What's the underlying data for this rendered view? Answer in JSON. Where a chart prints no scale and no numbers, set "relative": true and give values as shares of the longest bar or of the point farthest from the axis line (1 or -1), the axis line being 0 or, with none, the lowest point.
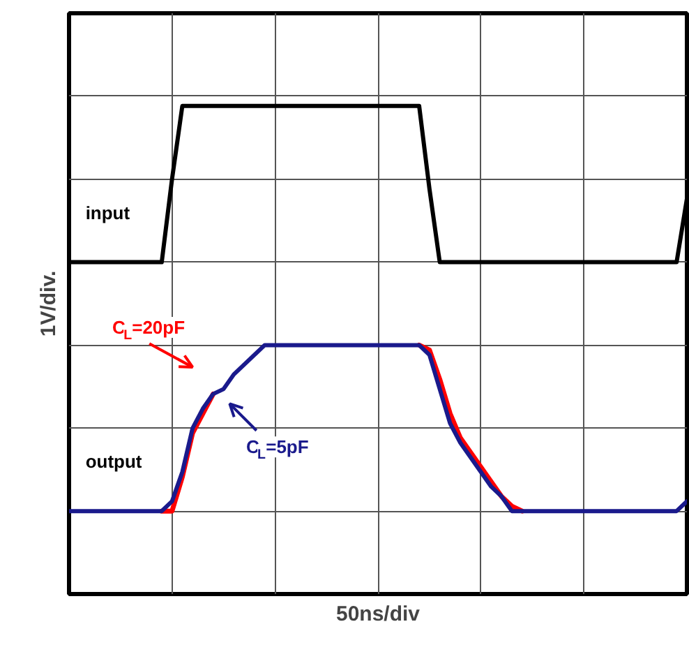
{
  "chart_data": {
    "type": "line",
    "relative": true,
    "xlabel": "50ns/div",
    "ylabel": "1V/div.",
    "grid": true,
    "categories": [
      null,
      null,
      null,
      null,
      null,
      null,
      null,
      null,
      null,
      null,
      null,
      null,
      null,
      null,
      null,
      null,
      null,
      null,
      null,
      null,
      null,
      null,
      null,
      null,
      null,
      null,
      null,
      null,
      null,
      null,
      null,
      null,
      null,
      null,
      null,
      null,
      null,
      null,
      null,
      null,
      null,
      null,
      null,
      null,
      null,
      null,
      null,
      null,
      null,
      null,
      null,
      null,
      null,
      null,
      null,
      null,
      null,
      null,
      null,
      null,
      null
    ],
    "series": [
      {
        "name": "input",
        "color": "#000000",
        "values": [
          0.68,
          0.68,
          0.68,
          0.68,
          0.68,
          0.68,
          0.68,
          0.68,
          0.68,
          0.68,
          0.85,
          1,
          1,
          1,
          1,
          1,
          1,
          1,
          1,
          1,
          1,
          1,
          1,
          1,
          1,
          1,
          1,
          1,
          1,
          1,
          1,
          1,
          1,
          1,
          1,
          0.83,
          0.68,
          0.68,
          0.68,
          0.68,
          0.68,
          0.68,
          0.68,
          0.68,
          0.68,
          0.68,
          0.68,
          0.68,
          0.68,
          0.68,
          0.68,
          0.68,
          0.68,
          0.68,
          0.68,
          0.68,
          0.68,
          0.68,
          0.68,
          0.68,
          0.81
        ]
      },
      {
        "name": "C$_{L}$=20pF",
        "color": "#ff0000",
        "values": [
          null,
          null,
          null,
          null,
          null,
          null,
          null,
          null,
          null,
          0.17,
          0.17,
          0.24,
          0.33,
          0.37,
          0.41,
          null,
          null,
          null,
          null,
          null,
          null,
          null,
          null,
          null,
          null,
          null,
          null,
          null,
          null,
          null,
          null,
          null,
          null,
          null,
          0.51,
          0.5,
          0.44,
          0.37,
          0.32,
          0.29,
          0.26,
          0.23,
          0.2,
          0.18,
          0.17,
          null,
          null,
          null,
          null,
          null,
          null,
          null,
          null,
          null,
          null,
          null,
          null,
          null,
          null,
          null,
          null
        ]
      },
      {
        "name": "C$_{L}$=5pF",
        "color": "#1a1a8c",
        "values": [
          0.17,
          0.17,
          0.17,
          0.17,
          0.17,
          0.17,
          0.17,
          0.17,
          0.17,
          0.17,
          0.19,
          0.25,
          0.34,
          0.38,
          0.41,
          0.42,
          0.45,
          0.47,
          0.49,
          0.51,
          0.51,
          0.51,
          0.51,
          0.51,
          0.51,
          0.51,
          0.51,
          0.51,
          0.51,
          0.51,
          0.51,
          0.51,
          0.51,
          0.51,
          0.51,
          0.49,
          0.42,
          0.35,
          0.31,
          0.28,
          0.25,
          0.22,
          0.2,
          0.17,
          0.17,
          0.17,
          0.17,
          0.17,
          0.17,
          0.17,
          0.17,
          0.17,
          0.17,
          0.17,
          0.17,
          0.17,
          0.17,
          0.17,
          0.17,
          0.17,
          0.19
        ]
      }
    ],
    "annotations": [
      "output"
    ]
  }
}
